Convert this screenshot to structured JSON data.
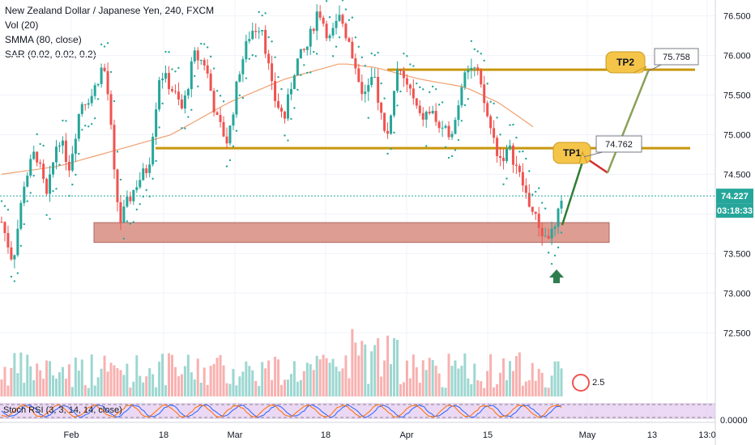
{
  "legend": {
    "title": "New Zealand Dollar / Japanese Yen, 240, FXCM",
    "vol": "Vol (20)",
    "smma": "SMMA (80, close)",
    "sar": "SAR (0.02, 0.02, 0.2)"
  },
  "stoch_label": "Stoch RSI (3, 3, 14, 14, close)",
  "vol_badge": "2.5",
  "colors": {
    "up": "#26a69a",
    "down": "#ef5350",
    "sar": "#26a69a",
    "smma": "#f0a070",
    "resistance": "#c8960c",
    "support_zone": "#d98c80",
    "arrow": "#2e7d4f",
    "callout": "#f5c54a",
    "price_tag": "#26a69a",
    "stoch_bg": "#e3c8f0"
  },
  "chart_data": {
    "type": "candlestick",
    "y_axis": {
      "ticks": [
        "76.500",
        "76.000",
        "75.500",
        "75.000",
        "74.500",
        "74.000",
        "73.500",
        "73.000",
        "72.500"
      ],
      "range": [
        71.9,
        76.7
      ]
    },
    "x_axis": {
      "ticks": [
        "Feb",
        "18",
        "Mar",
        "18",
        "Apr",
        "15",
        "May",
        "13",
        "13:0"
      ]
    },
    "last_price": "74.227",
    "countdown": "03:18:33",
    "stoch_axis_tick": "0.0000",
    "levels": {
      "resistance_upper": 75.82,
      "resistance_lower": 74.83,
      "support_zone": [
        73.64,
        73.89
      ]
    },
    "targets": [
      {
        "label": "TP1",
        "value": "74.762"
      },
      {
        "label": "TP2",
        "value": "75.758"
      }
    ],
    "projection_path": [
      {
        "x_index": 1,
        "y": 73.86
      },
      {
        "x_index": 2,
        "y": 74.72
      },
      {
        "x_index": 3,
        "y": 74.52
      },
      {
        "x_index": 4,
        "y": 75.8
      }
    ],
    "price_path": [
      {
        "t": 0,
        "y": 73.9
      },
      {
        "t": 2,
        "y": 73.4
      },
      {
        "t": 4,
        "y": 74.4
      },
      {
        "t": 6,
        "y": 74.8
      },
      {
        "t": 8,
        "y": 74.2
      },
      {
        "t": 10,
        "y": 75.0
      },
      {
        "t": 12,
        "y": 74.6
      },
      {
        "t": 14,
        "y": 75.4
      },
      {
        "t": 16,
        "y": 75.5
      },
      {
        "t": 18,
        "y": 75.9
      },
      {
        "t": 19,
        "y": 75.4
      },
      {
        "t": 20,
        "y": 74.4
      },
      {
        "t": 21,
        "y": 73.9
      },
      {
        "t": 22,
        "y": 74.1
      },
      {
        "t": 24,
        "y": 74.4
      },
      {
        "t": 26,
        "y": 74.6
      },
      {
        "t": 28,
        "y": 75.8
      },
      {
        "t": 30,
        "y": 75.6
      },
      {
        "t": 32,
        "y": 75.3
      },
      {
        "t": 34,
        "y": 76.0
      },
      {
        "t": 36,
        "y": 75.9
      },
      {
        "t": 38,
        "y": 75.2
      },
      {
        "t": 40,
        "y": 74.9
      },
      {
        "t": 42,
        "y": 75.8
      },
      {
        "t": 44,
        "y": 76.3
      },
      {
        "t": 46,
        "y": 76.4
      },
      {
        "t": 48,
        "y": 75.5
      },
      {
        "t": 50,
        "y": 75.2
      },
      {
        "t": 52,
        "y": 75.9
      },
      {
        "t": 54,
        "y": 76.1
      },
      {
        "t": 56,
        "y": 76.6
      },
      {
        "t": 58,
        "y": 76.2
      },
      {
        "t": 60,
        "y": 76.5
      },
      {
        "t": 62,
        "y": 76.0
      },
      {
        "t": 64,
        "y": 75.5
      },
      {
        "t": 66,
        "y": 75.7
      },
      {
        "t": 68,
        "y": 74.9
      },
      {
        "t": 70,
        "y": 75.8
      },
      {
        "t": 72,
        "y": 75.6
      },
      {
        "t": 74,
        "y": 75.2
      },
      {
        "t": 76,
        "y": 75.3
      },
      {
        "t": 78,
        "y": 75.0
      },
      {
        "t": 80,
        "y": 75.1
      },
      {
        "t": 82,
        "y": 75.9
      },
      {
        "t": 84,
        "y": 75.8
      },
      {
        "t": 86,
        "y": 75.2
      },
      {
        "t": 88,
        "y": 74.7
      },
      {
        "t": 90,
        "y": 74.8
      },
      {
        "t": 92,
        "y": 74.4
      },
      {
        "t": 94,
        "y": 74.0
      },
      {
        "t": 96,
        "y": 73.7
      },
      {
        "t": 98,
        "y": 73.8
      },
      {
        "t": 99,
        "y": 74.23
      }
    ],
    "smma_path": [
      {
        "t": 0,
        "y": 74.5
      },
      {
        "t": 10,
        "y": 74.6
      },
      {
        "t": 20,
        "y": 74.8
      },
      {
        "t": 30,
        "y": 75.0
      },
      {
        "t": 40,
        "y": 75.4
      },
      {
        "t": 50,
        "y": 75.7
      },
      {
        "t": 60,
        "y": 75.9
      },
      {
        "t": 66,
        "y": 75.85
      },
      {
        "t": 74,
        "y": 75.7
      },
      {
        "t": 82,
        "y": 75.6
      },
      {
        "t": 88,
        "y": 75.4
      },
      {
        "t": 94,
        "y": 75.1
      }
    ]
  }
}
